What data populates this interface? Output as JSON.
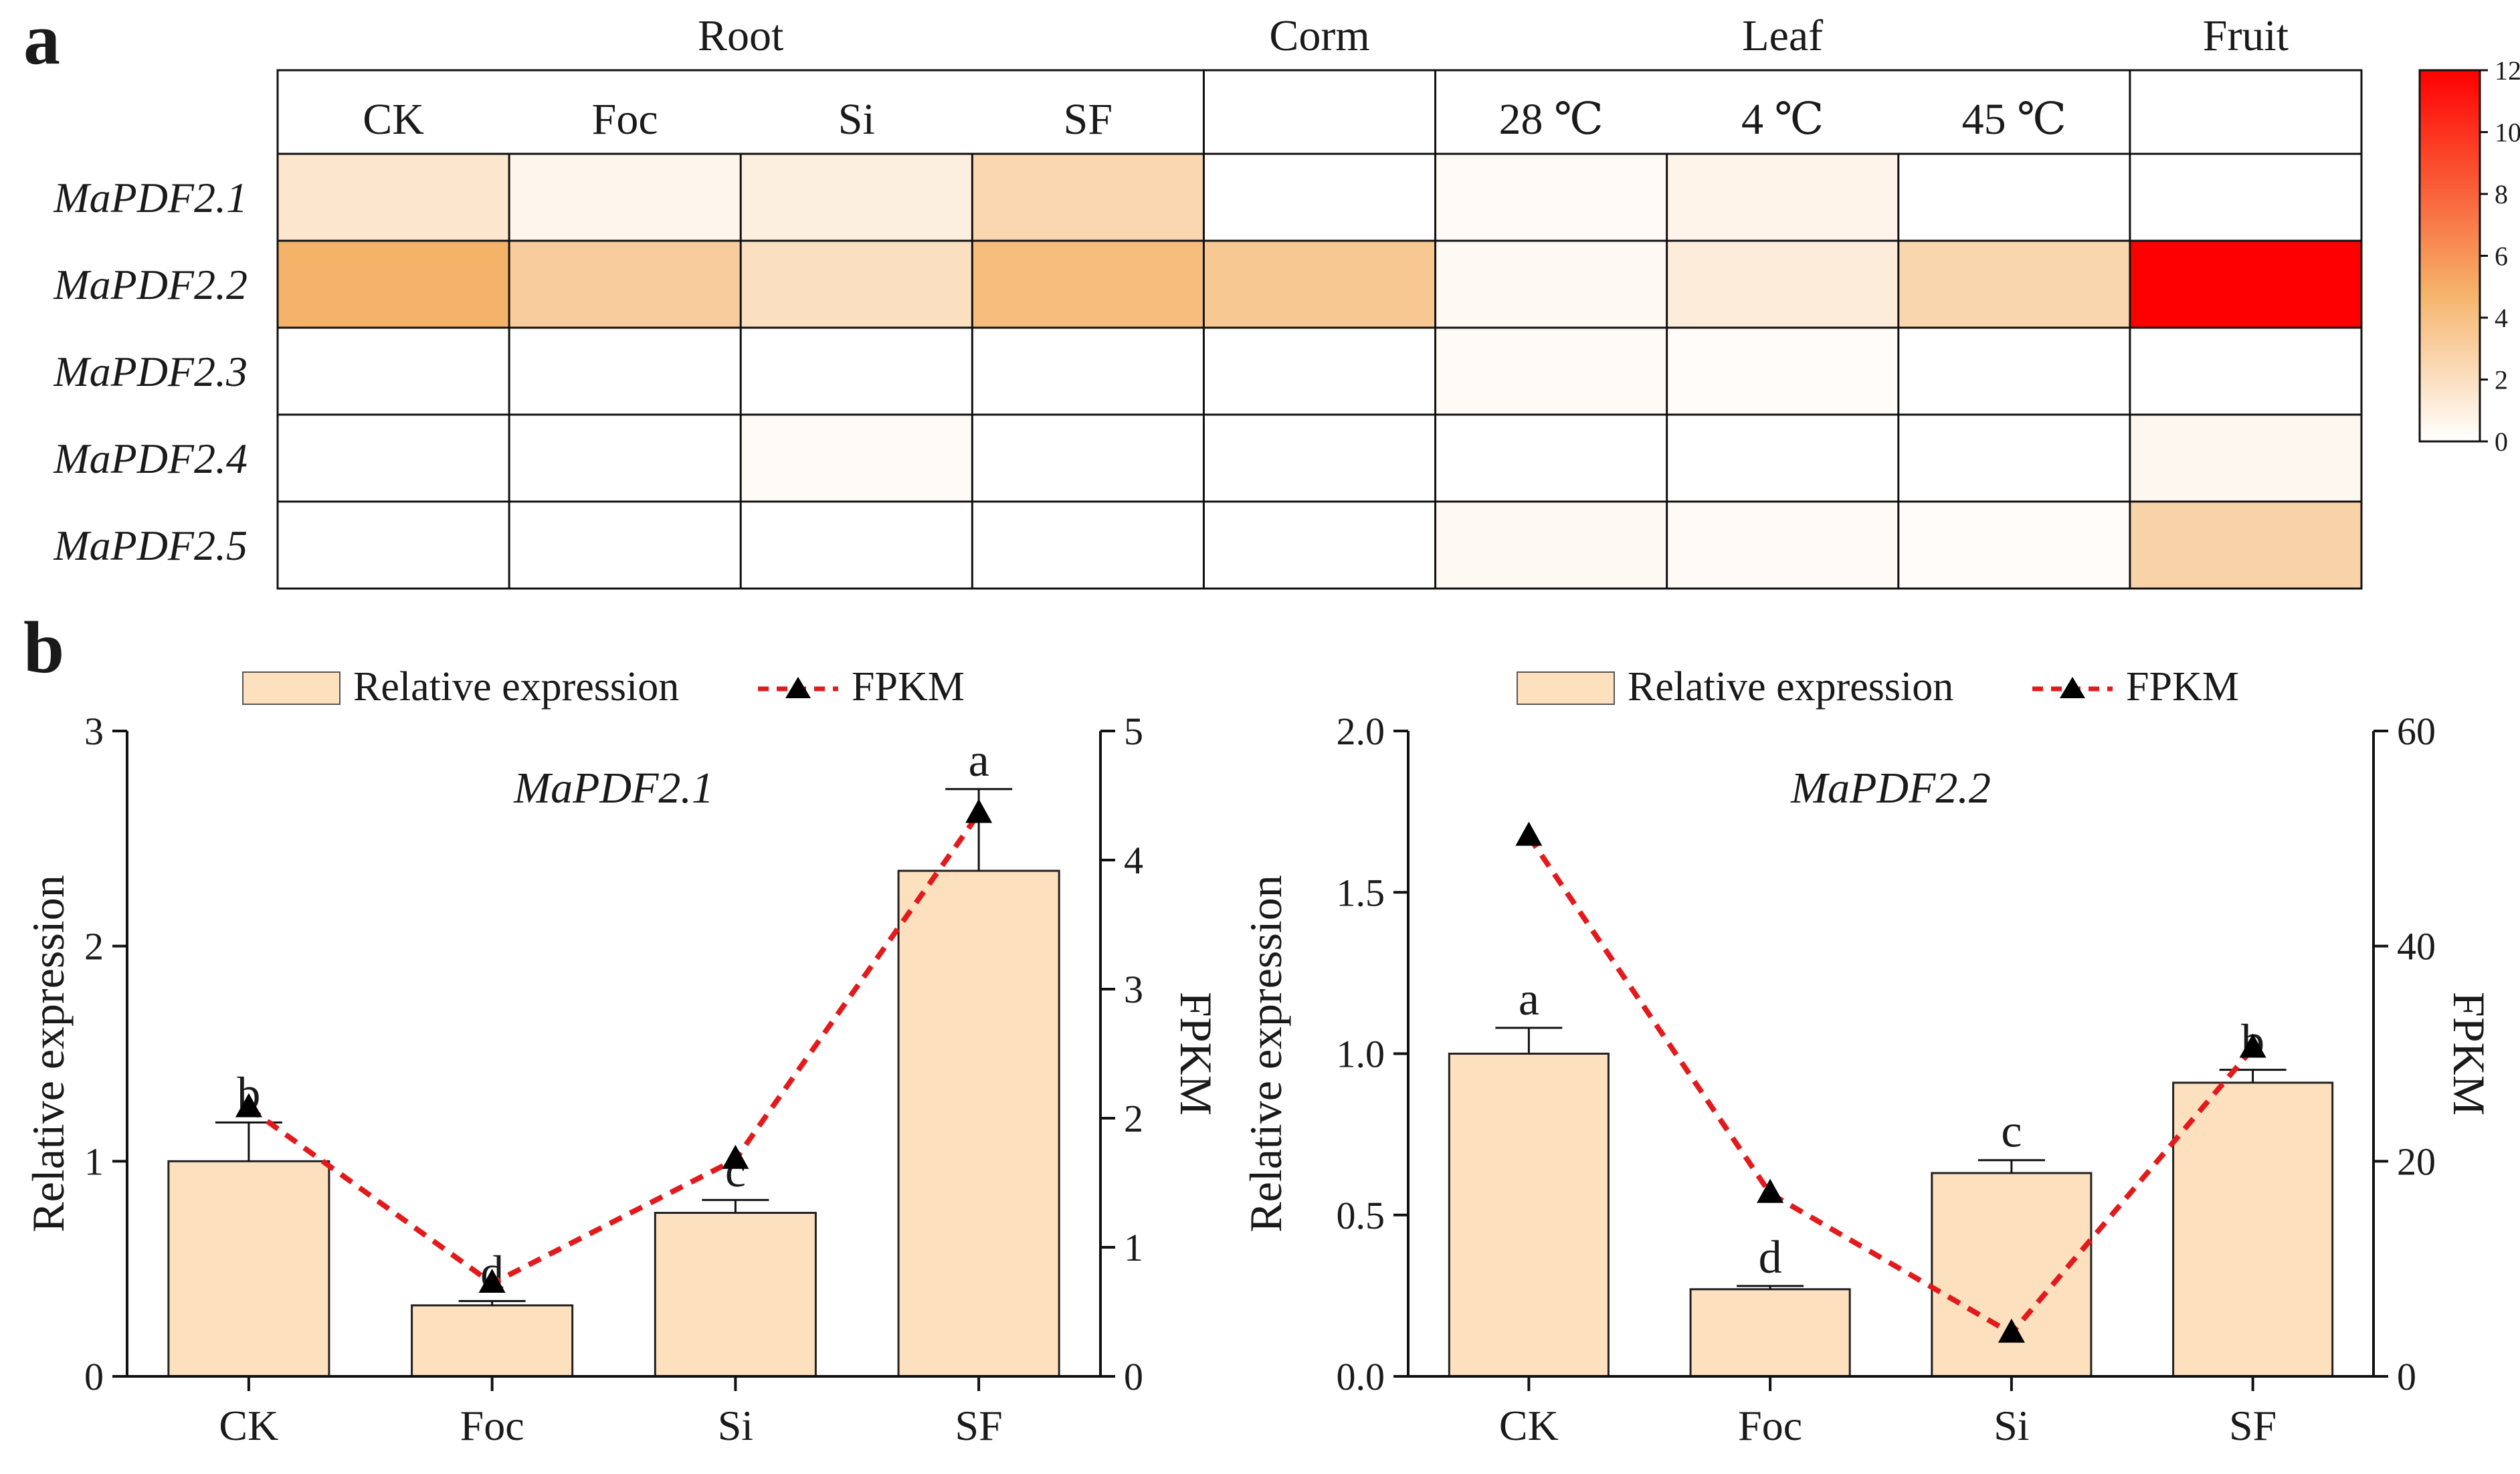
{
  "panel_labels": [
    "a",
    "b"
  ],
  "chart_data": [
    {
      "type": "heatmap",
      "groups": [
        {
          "label": "Root",
          "columns": [
            "CK",
            "Foc",
            "Si",
            "SF"
          ]
        },
        {
          "label": "Corm",
          "columns": [
            ""
          ]
        },
        {
          "label": "Leaf",
          "columns": [
            "28 ℃",
            "4 ℃",
            "45 ℃"
          ]
        },
        {
          "label": "Fruit",
          "columns": [
            ""
          ]
        }
      ],
      "rows": [
        "MaPDF2.1",
        "MaPDF2.2",
        "MaPDF2.3",
        "MaPDF2.4",
        "MaPDF2.5"
      ],
      "values": [
        [
          1.6,
          0.6,
          1.0,
          2.5,
          0.0,
          0.3,
          0.7,
          0.0,
          0.0
        ],
        [
          4.8,
          3.2,
          2.0,
          4.2,
          3.5,
          0.4,
          1.2,
          2.6,
          12.0
        ],
        [
          0.0,
          0.0,
          0.0,
          0.0,
          0.0,
          0.3,
          0.2,
          0.0,
          0.0
        ],
        [
          0.0,
          0.0,
          0.3,
          0.0,
          0.0,
          0.0,
          0.0,
          0.0,
          0.5
        ],
        [
          0.0,
          0.0,
          0.0,
          0.0,
          0.0,
          0.4,
          0.3,
          0.2,
          2.8
        ]
      ],
      "colorbar": {
        "min": 0,
        "max": 12,
        "ticks": [
          0,
          2,
          4,
          6,
          8,
          10,
          12
        ],
        "low_color": "#ffffff",
        "mid_color": "#f5b36a",
        "high_color": "#ff0000"
      }
    },
    {
      "type": "bar+line",
      "title": "MaPDF2.1",
      "categories": [
        "CK",
        "Foc",
        "Si",
        "SF"
      ],
      "series": [
        {
          "name": "Relative expression",
          "type": "bar",
          "values": [
            1.0,
            0.33,
            0.76,
            2.35
          ],
          "errors": [
            0.18,
            0.02,
            0.06,
            0.38
          ],
          "letters": [
            "b",
            "d",
            "c",
            "a"
          ],
          "axis": "left"
        },
        {
          "name": "FPKM",
          "type": "line",
          "values": [
            2.08,
            0.72,
            1.68,
            4.36
          ],
          "axis": "right"
        }
      ],
      "ylabel": "Relative expression",
      "y2label": "FPKM",
      "ylim": [
        0,
        3
      ],
      "yticks": [
        "0",
        "1",
        "2",
        "3"
      ],
      "y2lim": [
        0,
        5
      ],
      "y2ticks": [
        "0",
        "1",
        "2",
        "3",
        "4",
        "5"
      ],
      "legend": "top"
    },
    {
      "type": "bar+line",
      "title": "MaPDF2.2",
      "categories": [
        "CK",
        "Foc",
        "Si",
        "SF"
      ],
      "series": [
        {
          "name": "Relative expression",
          "type": "bar",
          "values": [
            1.0,
            0.27,
            0.63,
            0.91
          ],
          "errors": [
            0.08,
            0.01,
            0.04,
            0.04
          ],
          "letters": [
            "a",
            "d",
            "c",
            "b"
          ],
          "axis": "left"
        },
        {
          "name": "FPKM",
          "type": "line",
          "values": [
            50.2,
            17.0,
            4.0,
            30.5
          ],
          "axis": "right"
        }
      ],
      "ylabel": "Relative expression",
      "y2label": "FPKM",
      "ylim": [
        0,
        2
      ],
      "yticks": [
        "0.0",
        "0.5",
        "1.0",
        "1.5",
        "2.0"
      ],
      "y2lim": [
        0,
        60
      ],
      "y2ticks": [
        "0",
        "20",
        "40",
        "60"
      ],
      "legend": "top"
    }
  ]
}
